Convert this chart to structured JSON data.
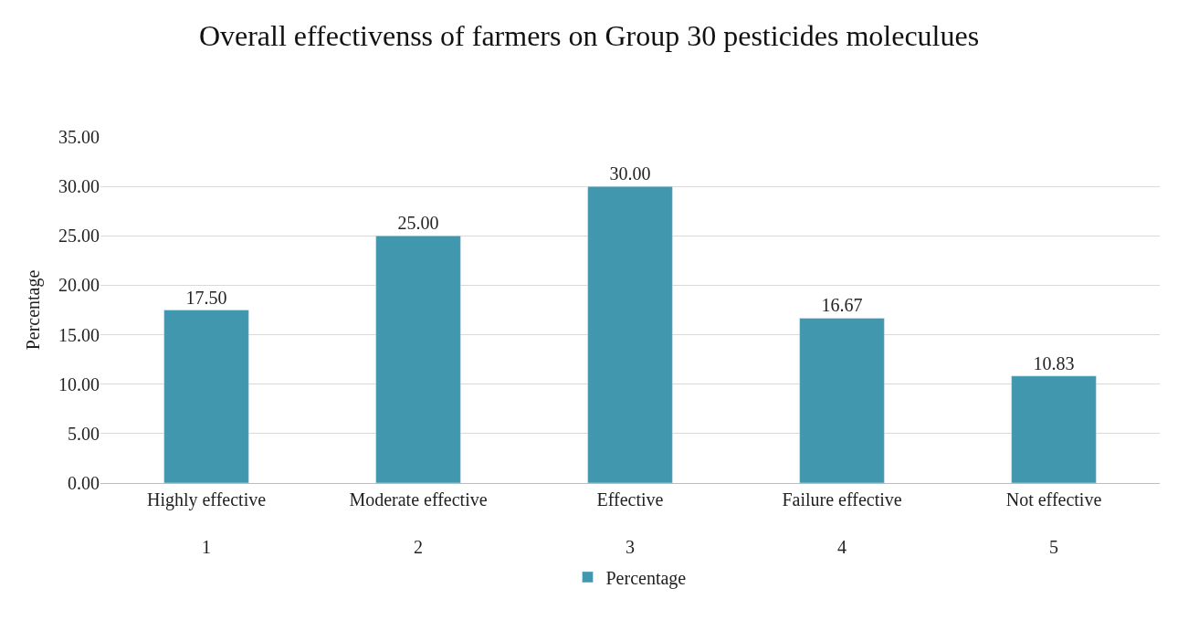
{
  "chart_data": {
    "type": "bar",
    "title": "Overall effectivenss of farmers on Group 30 pesticides moleculues",
    "ylabel": "Percentage",
    "categories": [
      "Highly effective\n1",
      "Moderate effective\n2",
      "Effective\n3",
      "Failure effective\n4",
      "Not effective\n5"
    ],
    "series": [
      {
        "name": "Percentage",
        "color": "#4197ae",
        "values": [
          17.5,
          25.0,
          30.0,
          16.67,
          10.83
        ]
      }
    ],
    "value_labels": [
      "17.50",
      "25.00",
      "30.00",
      "16.67",
      "10.83"
    ],
    "ylim": [
      0,
      35
    ],
    "yticks": [
      {
        "value": 0,
        "label": "0.00"
      },
      {
        "value": 5,
        "label": "5.00"
      },
      {
        "value": 10,
        "label": "10.00"
      },
      {
        "value": 15,
        "label": "15.00"
      },
      {
        "value": 20,
        "label": "20.00"
      },
      {
        "value": 25,
        "label": "25.00"
      },
      {
        "value": 30,
        "label": "30.00"
      },
      {
        "value": 35,
        "label": "35.00"
      }
    ],
    "grid": "y",
    "legend": "bottom"
  }
}
